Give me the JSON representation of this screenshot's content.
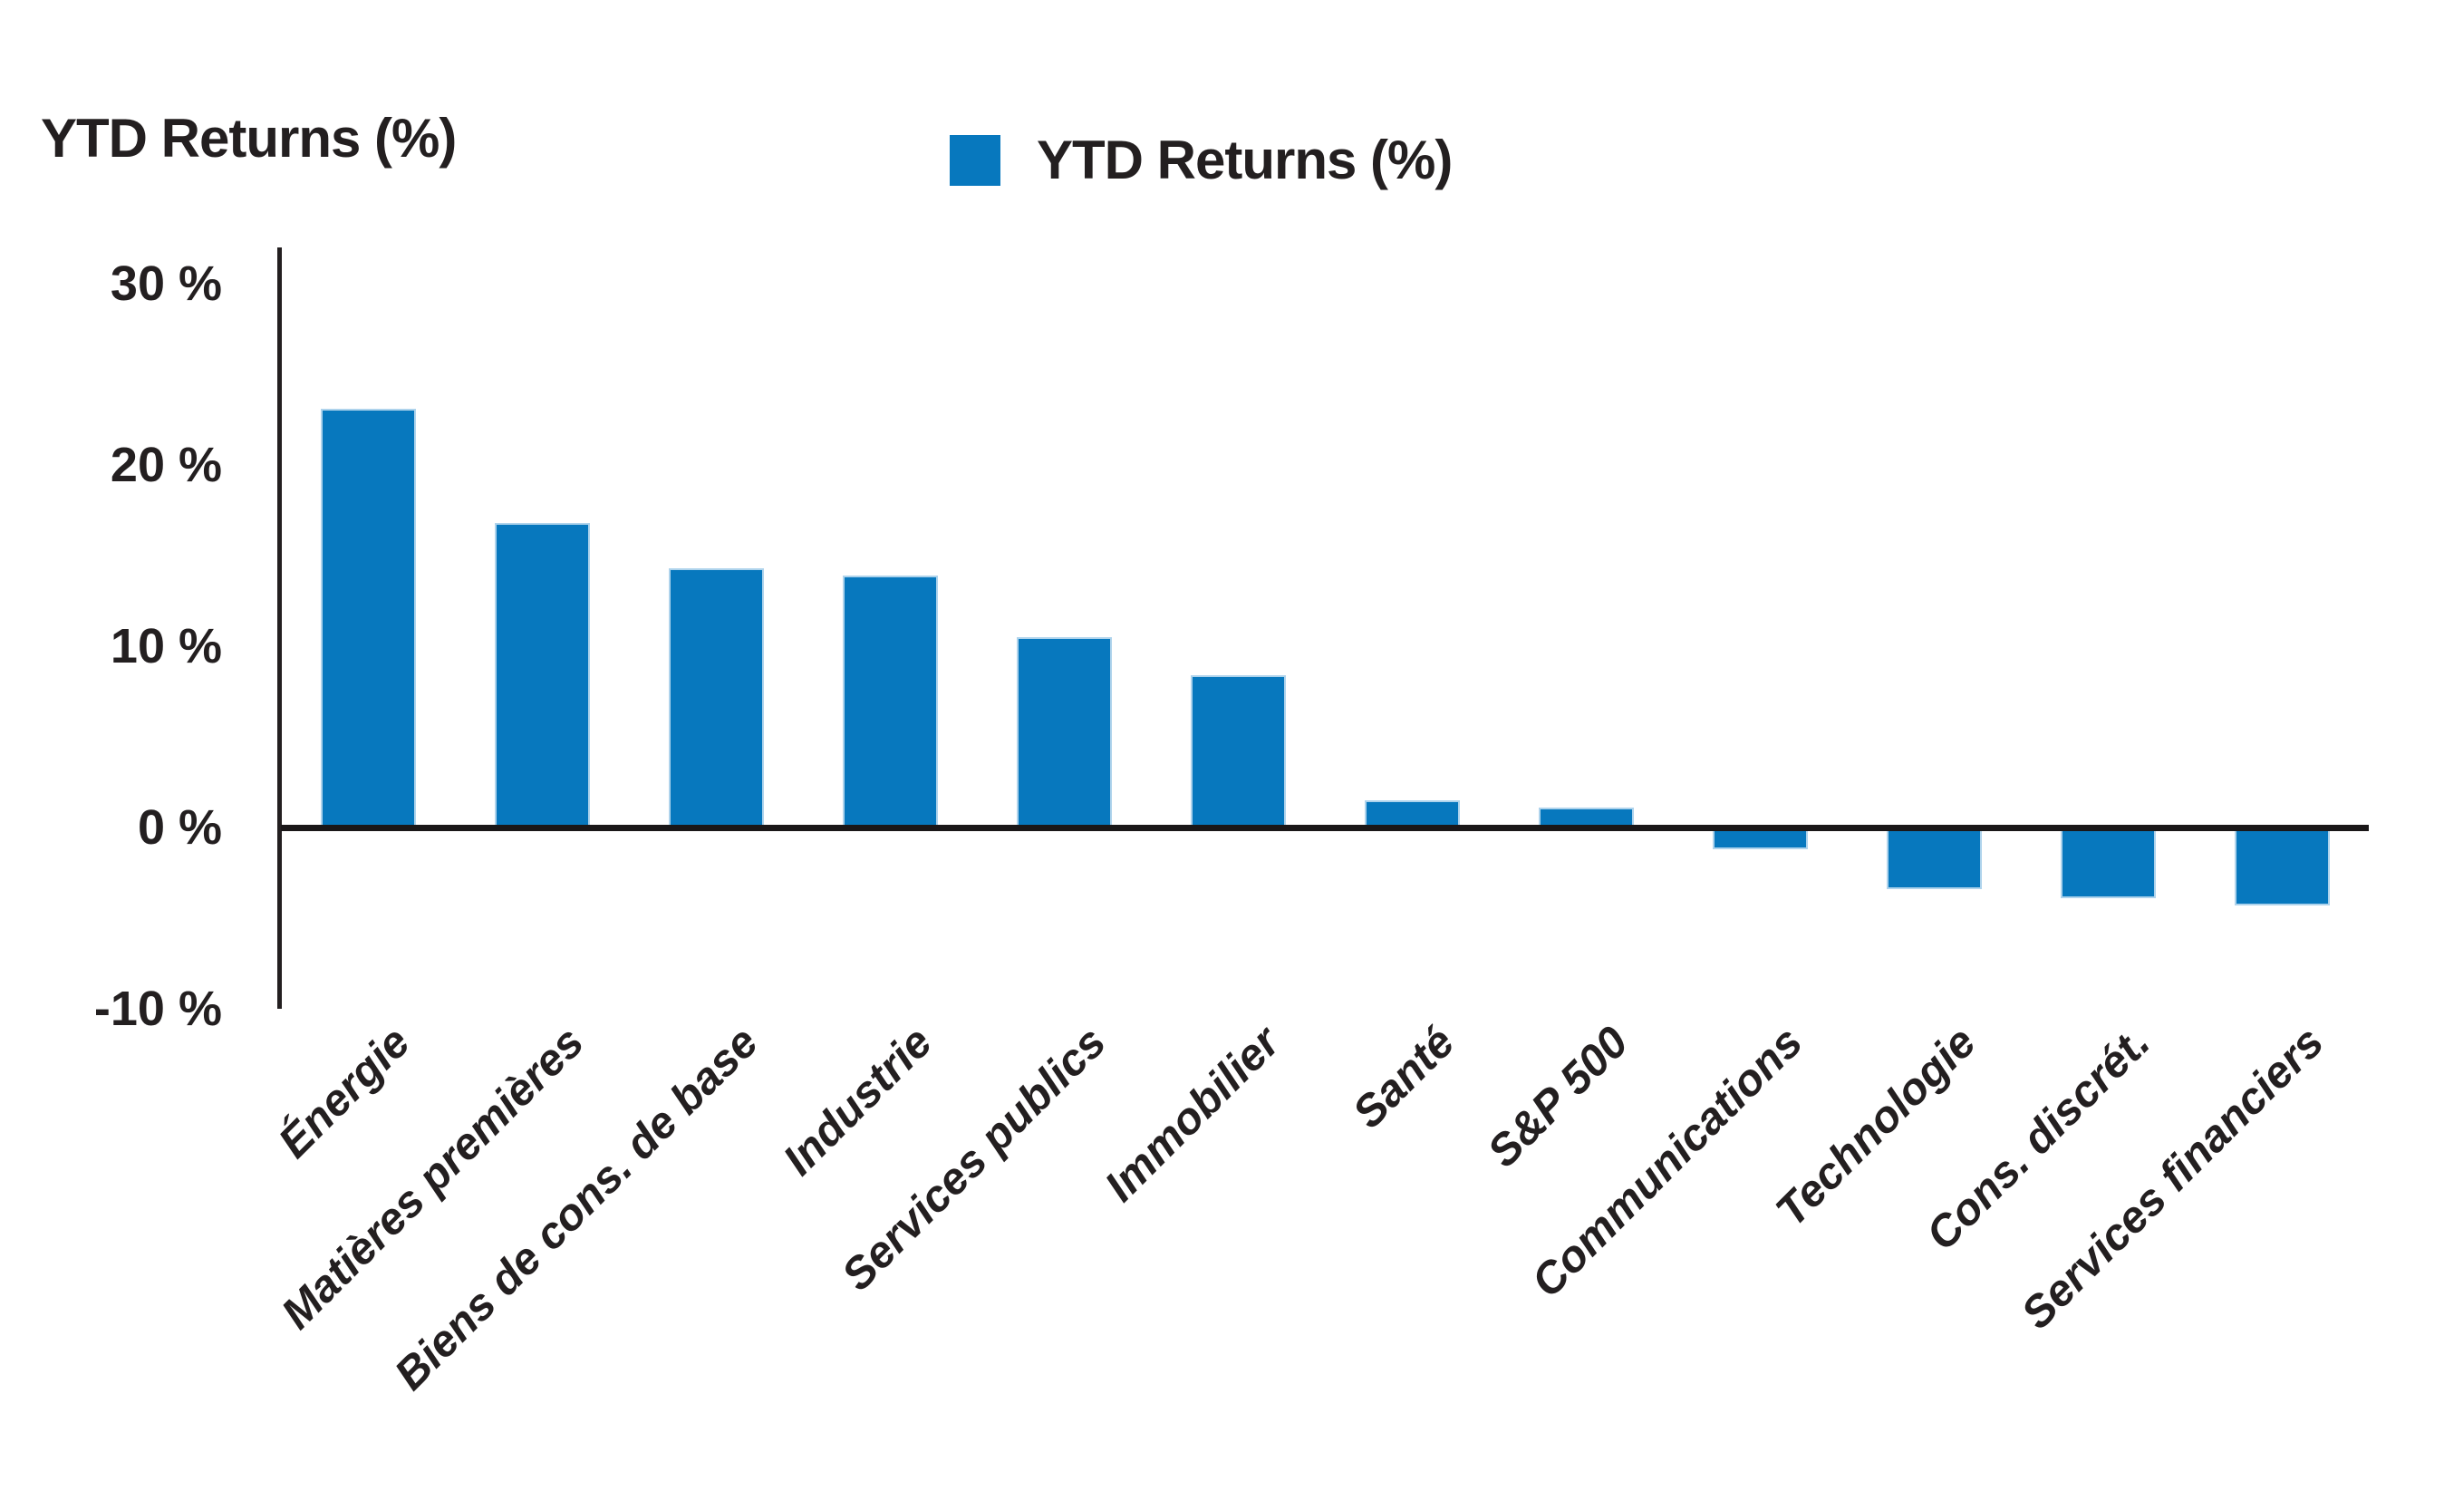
{
  "header": {
    "title": "YTD Returns (%)"
  },
  "legend": {
    "label": "YTD Returns (%)",
    "swatch_color": "#0778BE"
  },
  "y_axis": {
    "tick_labels": [
      "30 %",
      "20 %",
      "10 %",
      "0 %",
      "-10 %"
    ],
    "tick_values": [
      30,
      20,
      10,
      0,
      -10
    ]
  },
  "colors": {
    "bar_fill": "#0778BE",
    "bar_edge": "#AED3EC",
    "axis_line": "#231F20",
    "text": "#231F20"
  },
  "chart_data": {
    "type": "bar",
    "title": "YTD Returns (%)",
    "legend": [
      "YTD Returns (%)"
    ],
    "legend_position": "top-center",
    "xlabel": "",
    "ylabel": "YTD Returns (%)",
    "ylim": [
      -10,
      30
    ],
    "y_ticks": [
      30,
      20,
      10,
      0,
      -10
    ],
    "grid": false,
    "categories": [
      "Énergie",
      "Matières premières",
      "Biens de cons. de base",
      "Industrie",
      "Services publics",
      "Immobilier",
      "Santé",
      "S&P 500",
      "Communications",
      "Technologie",
      "Cons. discrét.",
      "Services financiers"
    ],
    "values": [
      23.1,
      16.8,
      14.3,
      13.9,
      10.5,
      8.4,
      1.5,
      1.1,
      -1.2,
      -3.4,
      -3.9,
      -4.3
    ]
  }
}
